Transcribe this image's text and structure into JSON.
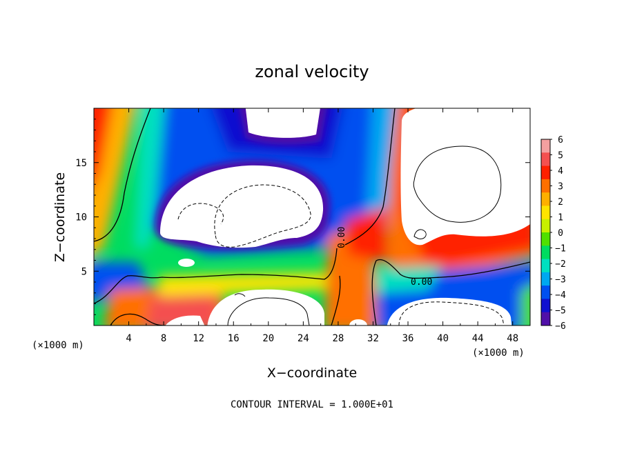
{
  "chart_data": {
    "type": "heatmap",
    "title": "zonal velocity",
    "xlabel": "X−coordinate",
    "ylabel": "Z−coordinate",
    "x_unit_left": "(×1000 m)",
    "x_unit_right": "(×1000 m)",
    "xlim": [
      0,
      50
    ],
    "ylim": [
      0,
      20
    ],
    "x_ticks": [
      4,
      8,
      12,
      16,
      20,
      24,
      28,
      32,
      36,
      40,
      44,
      48
    ],
    "x_tick_labels": [
      "4",
      "8",
      "12",
      "16",
      "20",
      "24",
      "28",
      "32",
      "36",
      "40",
      "44",
      "48"
    ],
    "y_ticks": [
      5,
      10,
      15
    ],
    "y_tick_labels": [
      "5",
      "10",
      "15"
    ],
    "colorbar": {
      "range": [
        -6,
        6
      ],
      "ticks": [
        6,
        5,
        4,
        3,
        2,
        1,
        0,
        -1,
        -2,
        -3,
        -4,
        -5,
        -6
      ],
      "tick_labels": [
        "6",
        "5",
        "4",
        "3",
        "2",
        "1",
        "0",
        "−1",
        "−2",
        "−3",
        "−4",
        "−5",
        "−6"
      ],
      "colors_top_to_bottom": [
        "#f4a0a0",
        "#f45050",
        "#ff2000",
        "#ff7000",
        "#ffb000",
        "#ffe400",
        "#c8f000",
        "#50e000",
        "#00dc60",
        "#00e0c0",
        "#00a8f0",
        "#0050f0",
        "#1010d0",
        "#5010a8"
      ]
    },
    "contour_labels": [
      "0.00",
      "0.00"
    ],
    "contour_interval_text": "CONTOUR INTERVAL = 1.000E+01",
    "saturation_color": "#ffffff"
  }
}
